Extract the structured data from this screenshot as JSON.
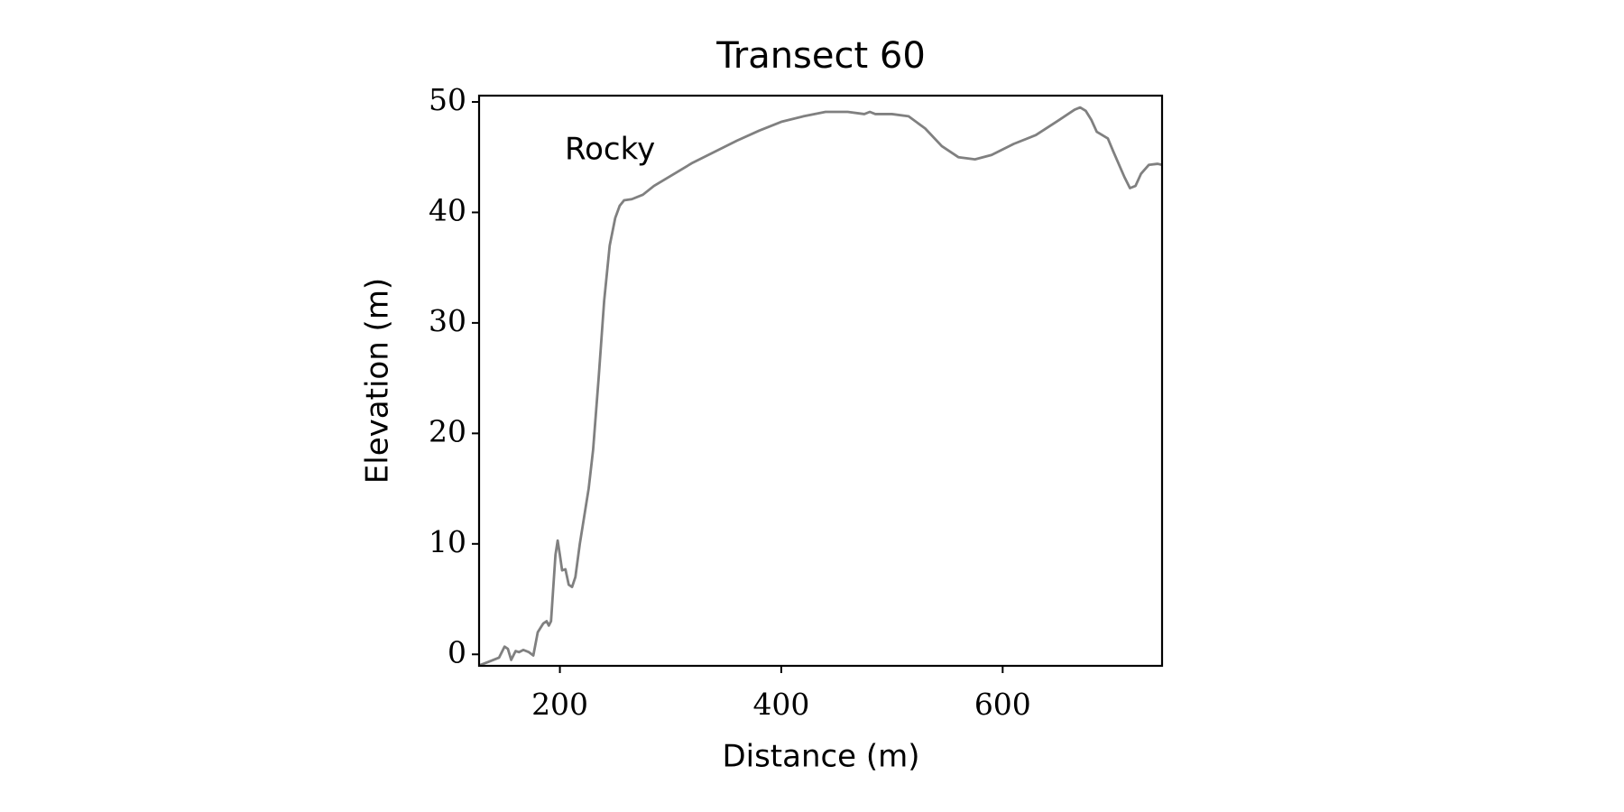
{
  "chart_data": {
    "type": "line",
    "title": "Transect 60",
    "xlabel": "Distance (m)",
    "ylabel": "Elevation (m)",
    "annotation": "Rocky",
    "color": "#808080",
    "x": [
      127,
      135,
      145,
      150,
      153,
      156,
      160,
      163,
      167,
      172,
      176,
      180,
      185,
      188,
      190,
      192,
      194,
      196,
      198,
      200,
      202,
      205,
      208,
      211,
      214,
      218,
      222,
      226,
      230,
      235,
      240,
      245,
      250,
      254,
      258,
      265,
      275,
      285,
      300,
      320,
      340,
      360,
      380,
      400,
      420,
      440,
      460,
      475,
      480,
      485,
      500,
      515,
      530,
      545,
      560,
      575,
      590,
      610,
      630,
      650,
      665,
      670,
      675,
      680,
      685,
      695,
      700,
      710,
      715,
      720,
      725,
      732,
      740,
      744
    ],
    "values": [
      -1,
      -0.7,
      -0.3,
      0.7,
      0.5,
      -0.5,
      0.3,
      0.2,
      0.4,
      0.2,
      -0.1,
      2,
      2.8,
      3,
      2.6,
      3,
      6,
      9,
      10.3,
      9,
      7.6,
      7.7,
      6.3,
      6.1,
      7,
      10,
      12.5,
      15,
      18.5,
      25,
      32,
      37,
      39.5,
      40.6,
      41.1,
      41.2,
      41.6,
      42.4,
      43.3,
      44.5,
      45.5,
      46.5,
      47.4,
      48.2,
      48.7,
      49.1,
      49.1,
      48.9,
      49.1,
      48.9,
      48.9,
      48.7,
      47.6,
      46,
      45,
      44.8,
      45.2,
      46.2,
      47,
      48.3,
      49.3,
      49.5,
      49.2,
      48.4,
      47.3,
      46.7,
      45.5,
      43.2,
      42.2,
      42.4,
      43.5,
      44.3,
      44.4,
      44.3
    ],
    "xlim": [
      127,
      744
    ],
    "ylim": [
      -1.04,
      50.57
    ],
    "xticks": [
      200,
      400,
      600
    ],
    "yticks": [
      0,
      10,
      20,
      30,
      40,
      50
    ]
  }
}
